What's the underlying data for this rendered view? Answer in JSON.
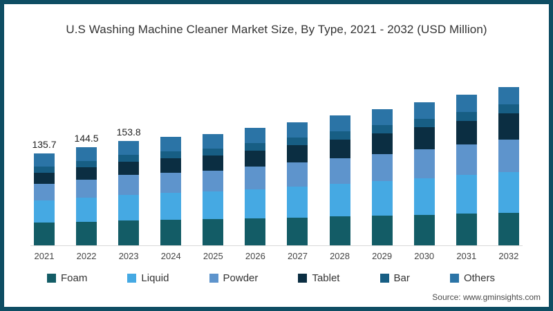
{
  "title": "U.S Washing Machine Cleaner Market Size, By Type, 2021 - 2032 (USD Million)",
  "source": "Source: www.gminsights.com",
  "colors": {
    "frame_border": "#0e4d63",
    "axis_line": "#d8d8d8",
    "title_text": "#333333"
  },
  "chart_data": {
    "type": "bar",
    "stacked": true,
    "title": "U.S Washing Machine Cleaner Market Size, By Type, 2021 - 2032 (USD Million)",
    "xlabel": "",
    "ylabel": "USD Million",
    "grid": false,
    "legend_position": "bottom",
    "categories": [
      "2021",
      "2022",
      "2023",
      "2024",
      "2025",
      "2026",
      "2027",
      "2028",
      "2029",
      "2030",
      "2031",
      "2032"
    ],
    "series": [
      {
        "name": "Foam",
        "color": "#135c66",
        "values": [
          34.0,
          35.1,
          36.7,
          37.8,
          38.6,
          39.8,
          41.1,
          42.4,
          43.7,
          45.1,
          46.5,
          48.0
        ]
      },
      {
        "name": "Liquid",
        "color": "#45a9e3",
        "values": [
          32.5,
          35.4,
          38.2,
          39.5,
          40.7,
          43.1,
          45.6,
          48.3,
          51.1,
          54.1,
          57.2,
          60.5
        ]
      },
      {
        "name": "Powder",
        "color": "#5e94cc",
        "values": [
          24.5,
          26.6,
          28.9,
          30.2,
          31.3,
          33.3,
          35.4,
          37.6,
          40.0,
          42.5,
          45.2,
          48.0
        ]
      },
      {
        "name": "Tablet",
        "color": "#0b2e42",
        "values": [
          16.5,
          18.5,
          20.0,
          21.2,
          22.4,
          24.1,
          26.0,
          28.1,
          30.3,
          32.7,
          35.2,
          38.0
        ]
      },
      {
        "name": "Bar",
        "color": "#175e84",
        "values": [
          9.0,
          9.2,
          9.7,
          10.1,
          10.4,
          10.8,
          11.2,
          11.7,
          12.1,
          12.6,
          13.0,
          13.5
        ]
      },
      {
        "name": "Others",
        "color": "#2b74a6",
        "values": [
          19.2,
          19.7,
          20.3,
          21.0,
          21.4,
          22.0,
          22.6,
          23.3,
          23.9,
          24.6,
          25.3,
          26.0
        ]
      }
    ],
    "total_labels": [
      "135.7",
      "144.5",
      "153.8",
      "",
      "",
      "",
      "",
      "",
      "",
      "",
      "",
      ""
    ],
    "labeled_totals": {
      "2021": 135.7,
      "2022": 144.5,
      "2023": 153.8
    }
  }
}
